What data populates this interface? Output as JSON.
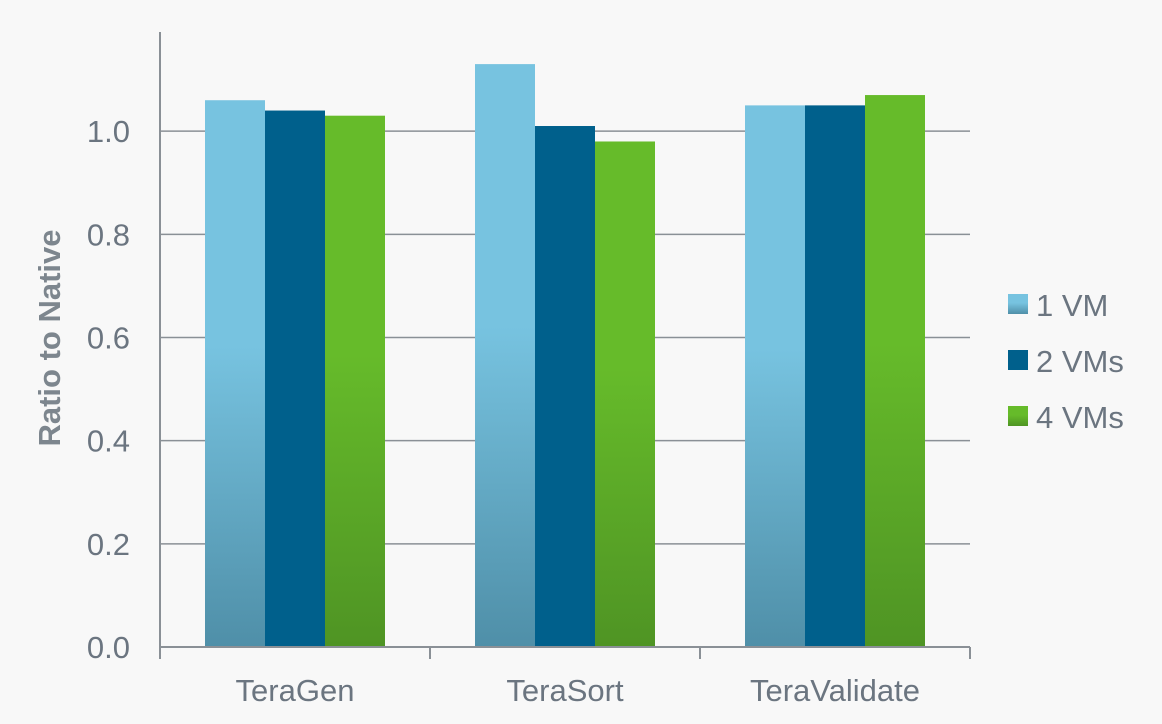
{
  "chart_data": {
    "type": "bar",
    "categories": [
      "TeraGen",
      "TeraSort",
      "TeraValidate"
    ],
    "series": [
      {
        "name": "1 VM",
        "values": [
          1.06,
          1.13,
          1.05
        ],
        "color": "#77c3e0",
        "color_bottom": "#4f8fa8"
      },
      {
        "name": "2 VMs",
        "values": [
          1.04,
          1.01,
          1.05
        ],
        "color": "#00608c",
        "color_bottom": "#00608c"
      },
      {
        "name": "4 VMs",
        "values": [
          1.03,
          0.98,
          1.07
        ],
        "color": "#66bb2a",
        "color_bottom": "#4f9424"
      }
    ],
    "ylabel": "Ratio to Native",
    "xlabel": "",
    "ylim": [
      0,
      1.2
    ],
    "yticks": [
      "0.0",
      "0.2",
      "0.4",
      "0.6",
      "0.8",
      "1.0"
    ],
    "grid": true,
    "legend_position": "right"
  }
}
